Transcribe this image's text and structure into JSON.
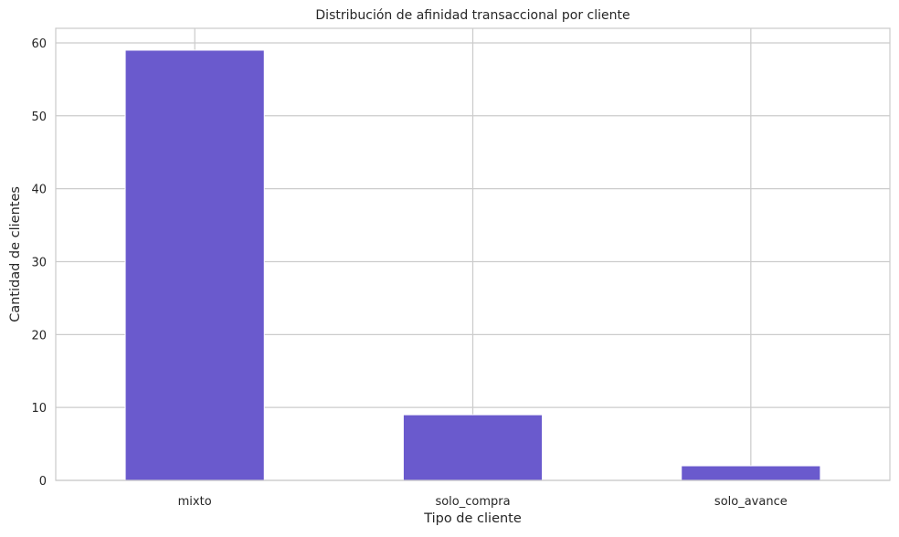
{
  "chart_data": {
    "type": "bar",
    "title": "Distribución de afinidad transaccional por cliente",
    "xlabel": "Tipo de cliente",
    "ylabel": "Cantidad de clientes",
    "categories": [
      "mixto",
      "solo_compra",
      "solo_avance"
    ],
    "values": [
      59,
      9,
      2
    ],
    "ylim": [
      0,
      62
    ],
    "yticks": [
      0,
      10,
      20,
      30,
      40,
      50,
      60
    ],
    "grid": true,
    "legend": "none",
    "colors": {
      "bar": "#6a5acd",
      "grid": "#cccccc",
      "axes": "#cccccc",
      "background": "#ffffff"
    }
  }
}
